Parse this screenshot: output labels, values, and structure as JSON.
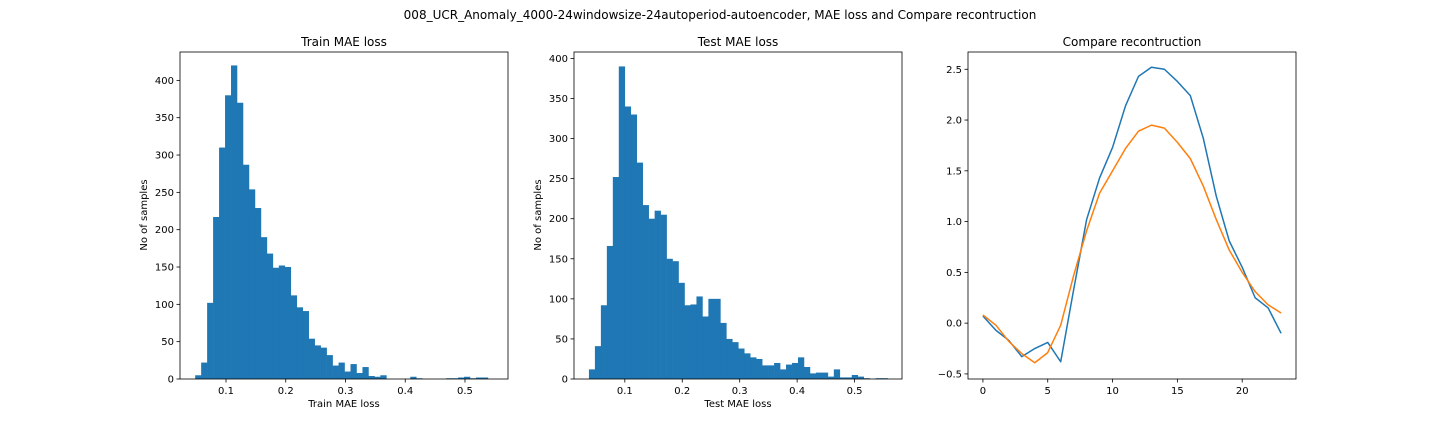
{
  "figure": {
    "suptitle": "008_UCR_Anomaly_4000-24windowsize-24autoperiod-autoencoder, MAE loss and Compare recontruction",
    "bar_color": "#1f77b4",
    "series_colors": [
      "#1f77b4",
      "#ff7f0e"
    ]
  },
  "chart_data": [
    {
      "type": "bar",
      "title": "Train MAE loss",
      "xlabel": "Train MAE loss",
      "ylabel": "No of samples",
      "xlim": [
        0.023,
        0.572
      ],
      "ylim": [
        0,
        438
      ],
      "xticks": [
        0.1,
        0.2,
        0.3,
        0.4,
        0.5
      ],
      "xtick_labels": [
        "0.1",
        "0.2",
        "0.3",
        "0.4",
        "0.5"
      ],
      "yticks": [
        0,
        50,
        100,
        150,
        200,
        250,
        300,
        350,
        400
      ],
      "bin_start": 0.0484,
      "bin_width": 0.01,
      "values": [
        5,
        22,
        102,
        217,
        310,
        380,
        420,
        370,
        287,
        254,
        229,
        190,
        168,
        149,
        152,
        150,
        112,
        96,
        91,
        54,
        45,
        42,
        32,
        18,
        22,
        10,
        20,
        8,
        16,
        4,
        3,
        5,
        0,
        0,
        0,
        0,
        3,
        1,
        0,
        0,
        0,
        0,
        1,
        1,
        2,
        3,
        1,
        2,
        2,
        0
      ]
    },
    {
      "type": "bar",
      "title": "Test MAE loss",
      "xlabel": "Test MAE loss",
      "ylabel": "No of samples",
      "xlim": [
        0.0115,
        0.5826
      ],
      "ylim": [
        0,
        408
      ],
      "xticks": [
        0.1,
        0.2,
        0.3,
        0.4,
        0.5
      ],
      "xtick_labels": [
        "0.1",
        "0.2",
        "0.3",
        "0.4",
        "0.5"
      ],
      "yticks": [
        0,
        50,
        100,
        150,
        200,
        250,
        300,
        350,
        400
      ],
      "bin_start": 0.0375,
      "bin_width": 0.0104,
      "values": [
        12,
        41,
        92,
        166,
        252,
        390,
        340,
        330,
        270,
        217,
        200,
        210,
        205,
        150,
        147,
        120,
        92,
        93,
        103,
        78,
        100,
        100,
        70,
        50,
        46,
        38,
        32,
        27,
        25,
        17,
        17,
        20,
        12,
        18,
        20,
        27,
        15,
        7,
        8,
        8,
        3,
        12,
        2,
        2,
        5,
        3,
        1,
        0,
        1,
        1
      ]
    },
    {
      "type": "line",
      "title": "Compare recontruction",
      "xlabel": "",
      "ylabel": "",
      "xlim": [
        -1.15,
        24.15
      ],
      "ylim": [
        -0.55,
        2.67
      ],
      "xticks": [
        0,
        5,
        10,
        15,
        20
      ],
      "xtick_labels": [
        "0",
        "5",
        "10",
        "15",
        "20"
      ],
      "yticks": [
        -0.5,
        0.0,
        0.5,
        1.0,
        1.5,
        2.0,
        2.5
      ],
      "ytick_labels": [
        "−0.5",
        "0.0",
        "0.5",
        "1.0",
        "1.5",
        "2.0",
        "2.5"
      ],
      "x": [
        0,
        1,
        2,
        3,
        4,
        5,
        6,
        7,
        8,
        9,
        10,
        11,
        12,
        13,
        14,
        15,
        16,
        17,
        18,
        19,
        20,
        21,
        22,
        23
      ],
      "series": [
        {
          "values": [
            0.07,
            -0.07,
            -0.17,
            -0.33,
            -0.25,
            -0.19,
            -0.38,
            0.33,
            1.02,
            1.43,
            1.73,
            2.14,
            2.43,
            2.52,
            2.5,
            2.38,
            2.24,
            1.82,
            1.25,
            0.81,
            0.55,
            0.25,
            0.15,
            -0.1
          ]
        },
        {
          "values": [
            0.08,
            -0.02,
            -0.18,
            -0.3,
            -0.39,
            -0.29,
            -0.02,
            0.47,
            0.91,
            1.28,
            1.5,
            1.72,
            1.89,
            1.95,
            1.92,
            1.78,
            1.62,
            1.35,
            1.02,
            0.72,
            0.5,
            0.31,
            0.18,
            0.1
          ]
        }
      ]
    }
  ]
}
